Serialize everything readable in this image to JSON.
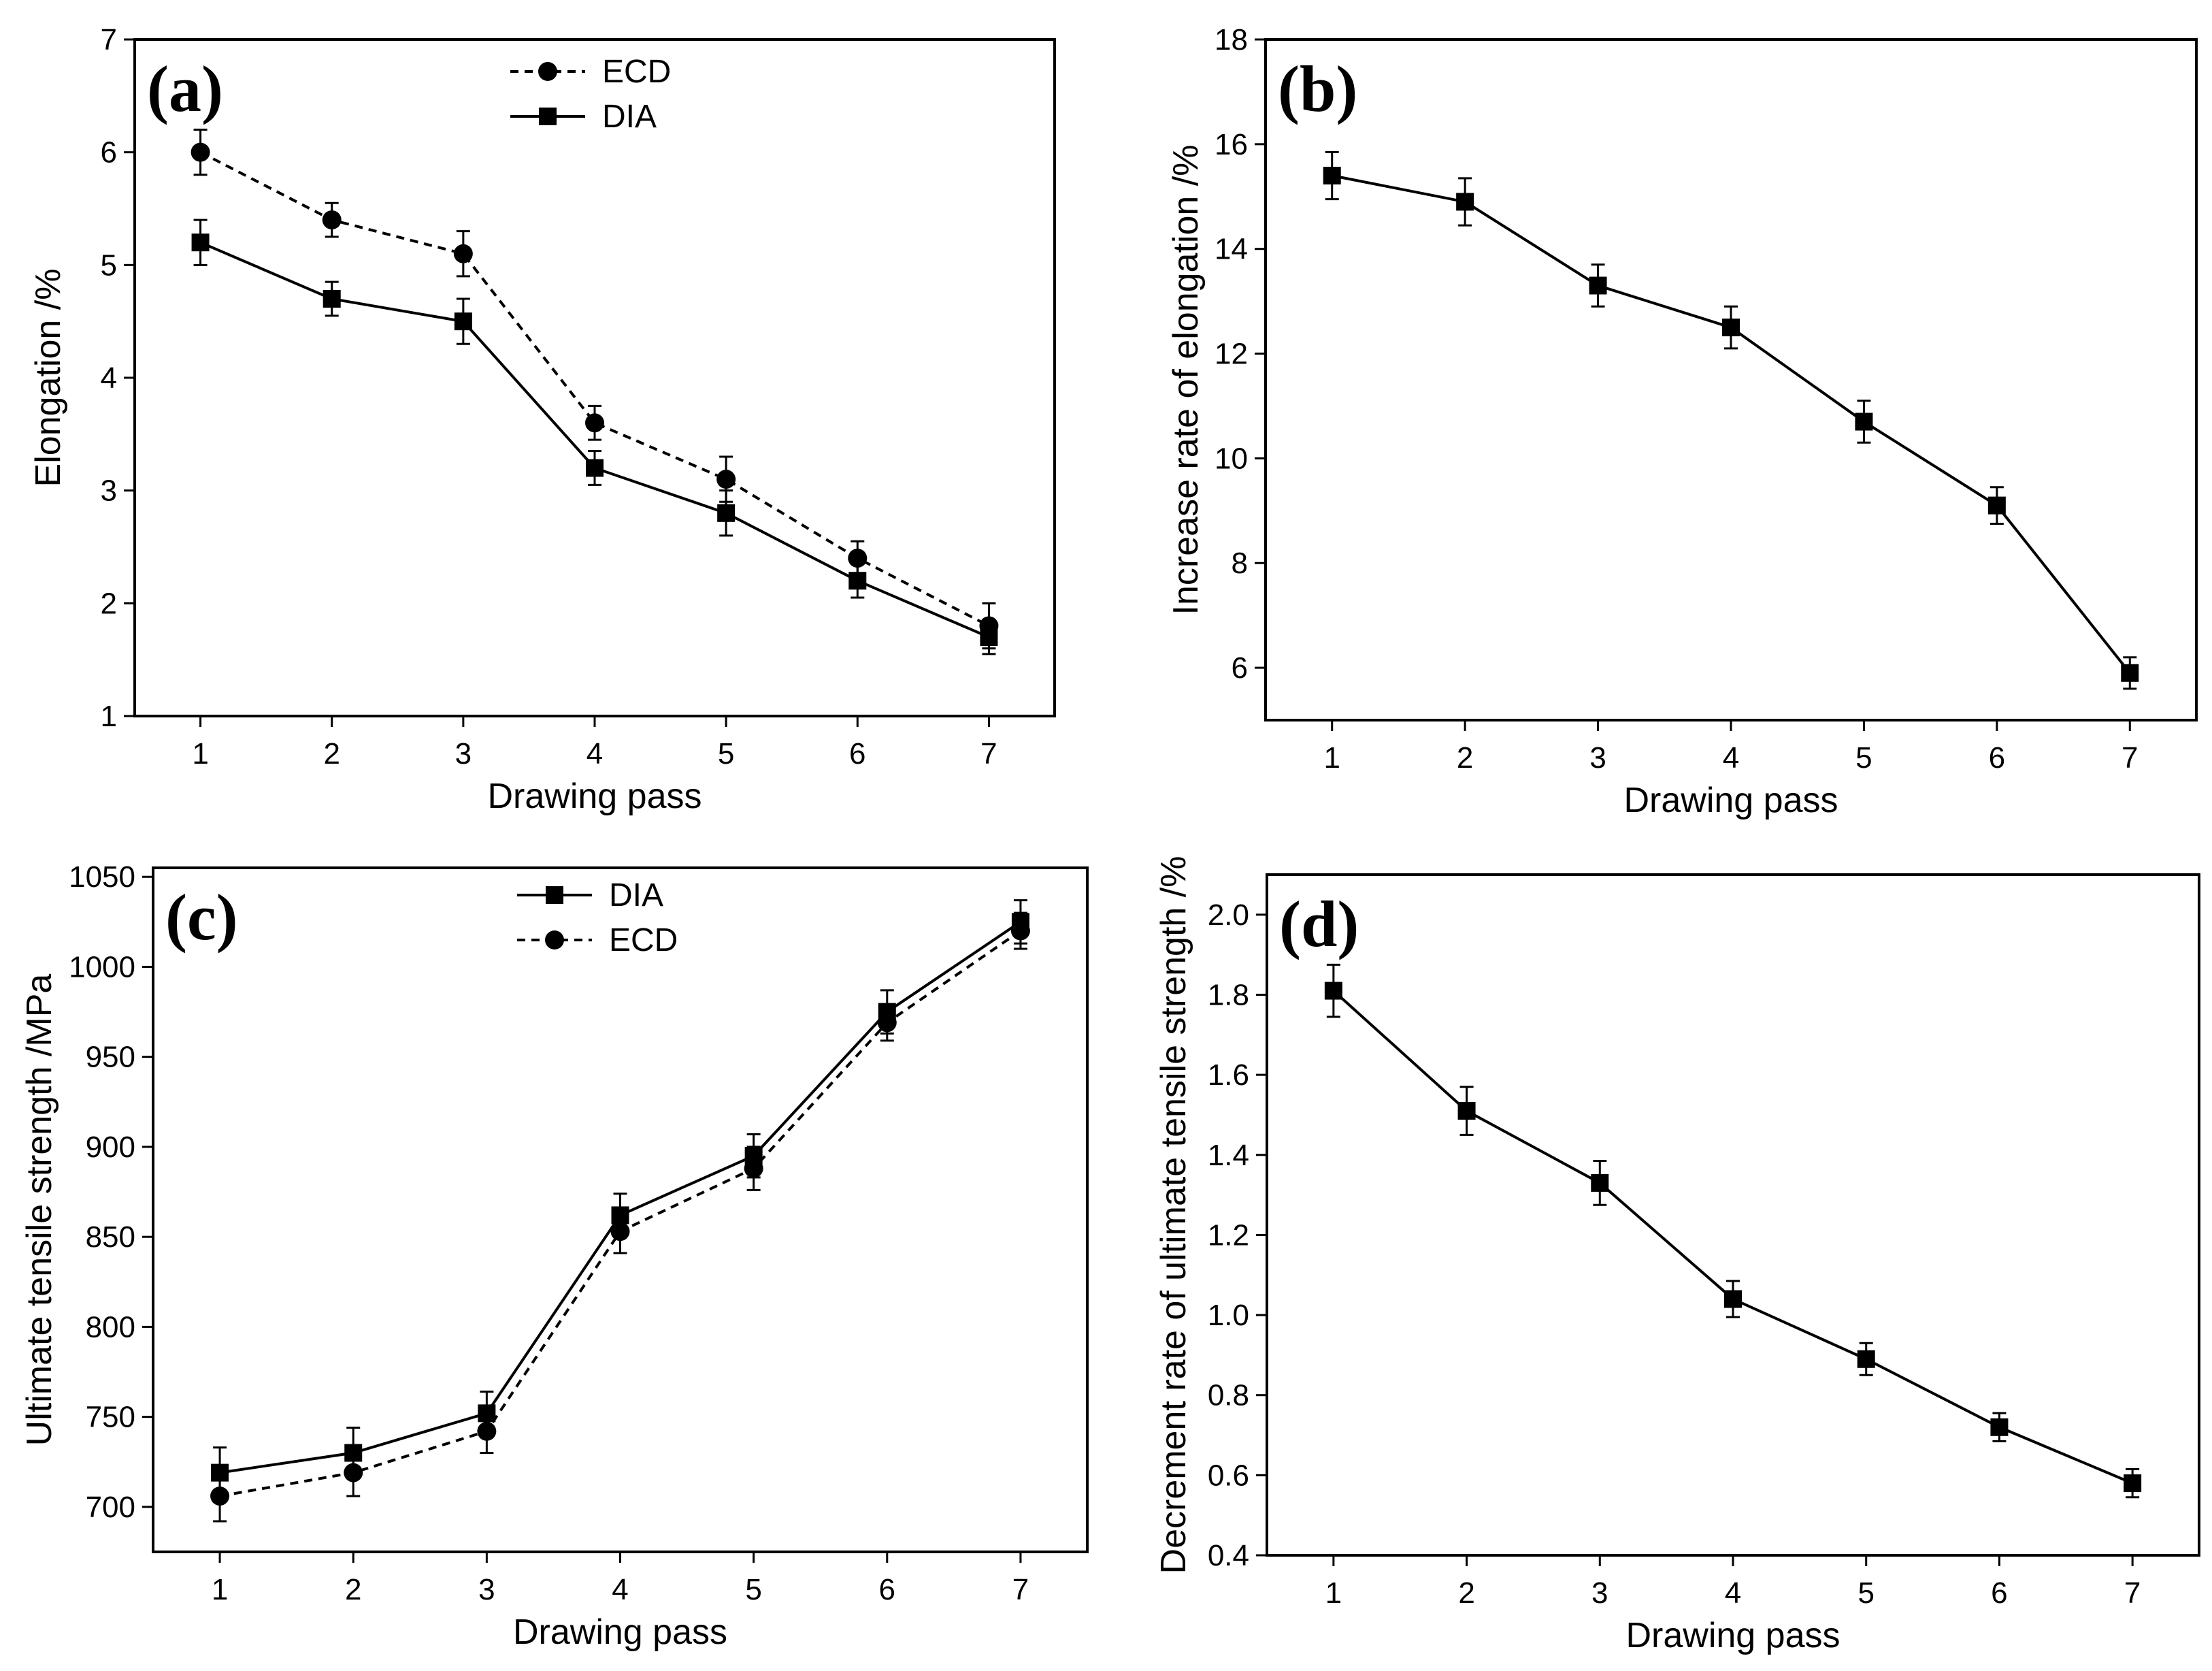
{
  "chart_data": [
    {
      "panel": "(a)",
      "type": "line",
      "xlabel": "Drawing pass",
      "ylabel": "Elongation /%",
      "x": [
        1,
        2,
        3,
        4,
        5,
        6,
        7
      ],
      "xticks": [
        "1",
        "2",
        "3",
        "4",
        "5",
        "6",
        "7"
      ],
      "xlim": [
        0.5,
        7.5
      ],
      "ylim": [
        1,
        7
      ],
      "yticks": [
        "1",
        "2",
        "3",
        "4",
        "5",
        "6",
        "7"
      ],
      "legend_position": "top-center",
      "series": [
        {
          "name": "ECD",
          "marker": "circle",
          "dashed": true,
          "values": [
            6.0,
            5.4,
            5.1,
            3.6,
            3.1,
            2.4,
            1.8
          ],
          "errors": [
            0.2,
            0.15,
            0.2,
            0.15,
            0.2,
            0.15,
            0.2
          ]
        },
        {
          "name": "DIA",
          "marker": "square",
          "dashed": false,
          "values": [
            5.2,
            4.7,
            4.5,
            3.2,
            2.8,
            2.2,
            1.7
          ],
          "errors": [
            0.2,
            0.15,
            0.2,
            0.15,
            0.2,
            0.15,
            0.15
          ]
        }
      ]
    },
    {
      "panel": "(b)",
      "type": "line",
      "xlabel": "Drawing pass",
      "ylabel": "Increase rate of elongation /%",
      "x": [
        1,
        2,
        3,
        4,
        5,
        6,
        7
      ],
      "xticks": [
        "1",
        "2",
        "3",
        "4",
        "5",
        "6",
        "7"
      ],
      "xlim": [
        0.5,
        7.5
      ],
      "ylim": [
        5,
        18
      ],
      "yticks": [
        "6",
        "8",
        "10",
        "12",
        "14",
        "16",
        "18"
      ],
      "series": [
        {
          "name": "",
          "marker": "square",
          "dashed": false,
          "values": [
            15.4,
            14.9,
            13.3,
            12.5,
            10.7,
            9.1,
            5.9
          ],
          "errors": [
            0.45,
            0.45,
            0.4,
            0.4,
            0.4,
            0.35,
            0.3
          ]
        }
      ]
    },
    {
      "panel": "(c)",
      "type": "line",
      "xlabel": "Drawing pass",
      "ylabel": "Ultimate tensile strength /MPa",
      "x": [
        1,
        2,
        3,
        4,
        5,
        6,
        7
      ],
      "xticks": [
        "1",
        "2",
        "3",
        "4",
        "5",
        "6",
        "7"
      ],
      "xlim": [
        0.5,
        7.5
      ],
      "ylim": [
        675,
        1055
      ],
      "yticks": [
        "700",
        "750",
        "800",
        "850",
        "900",
        "950",
        "1000",
        "1050"
      ],
      "legend_position": "top-center",
      "series": [
        {
          "name": "DIA",
          "marker": "square",
          "dashed": false,
          "values": [
            719,
            730,
            752,
            862,
            895,
            975,
            1025
          ],
          "errors": [
            14,
            14,
            12,
            12,
            12,
            12,
            12
          ]
        },
        {
          "name": "ECD",
          "marker": "circle",
          "dashed": true,
          "values": [
            706,
            719,
            742,
            853,
            888,
            969,
            1020
          ],
          "errors": [
            14,
            13,
            12,
            12,
            12,
            10,
            10
          ]
        }
      ]
    },
    {
      "panel": "(d)",
      "type": "line",
      "xlabel": "Drawing pass",
      "ylabel": "Decrement rate of ultimate tensile strength /%",
      "x": [
        1,
        2,
        3,
        4,
        5,
        6,
        7
      ],
      "xticks": [
        "1",
        "2",
        "3",
        "4",
        "5",
        "6",
        "7"
      ],
      "xlim": [
        0.5,
        7.5
      ],
      "ylim": [
        0.4,
        2.1
      ],
      "yticks": [
        "0.4",
        "0.6",
        "0.8",
        "1.0",
        "1.2",
        "1.4",
        "1.6",
        "1.8",
        "2.0"
      ],
      "series": [
        {
          "name": "",
          "marker": "square",
          "dashed": false,
          "values": [
            1.81,
            1.51,
            1.33,
            1.04,
            0.89,
            0.72,
            0.58
          ],
          "errors": [
            0.065,
            0.06,
            0.055,
            0.045,
            0.04,
            0.035,
            0.035
          ]
        }
      ]
    }
  ]
}
